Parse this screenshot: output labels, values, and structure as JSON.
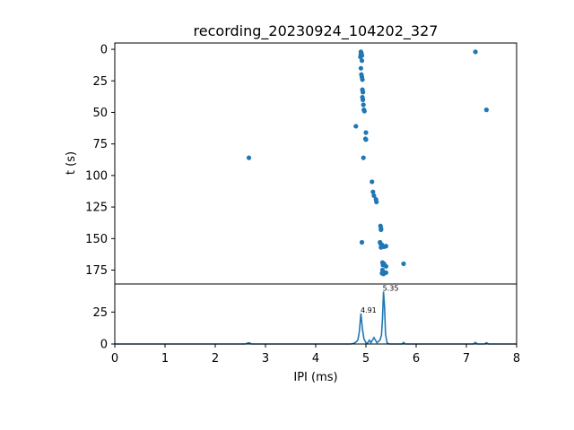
{
  "chart_data": [
    {
      "type": "scatter",
      "title": "recording_20230924_104202_327",
      "xlabel": "",
      "ylabel": "t (s)",
      "xlim": [
        0,
        8
      ],
      "ylim": [
        186,
        -5
      ],
      "y_inverted": true,
      "yticks": [
        "0",
        "25",
        "50",
        "75",
        "100",
        "125",
        "150",
        "175"
      ],
      "grid": false,
      "color": "#1f77b4",
      "points": [
        [
          7.18,
          2
        ],
        [
          7.4,
          48
        ],
        [
          2.67,
          86
        ],
        [
          4.9,
          2
        ],
        [
          4.91,
          3
        ],
        [
          4.9,
          4
        ],
        [
          4.92,
          5
        ],
        [
          4.89,
          6
        ],
        [
          4.91,
          3.5
        ],
        [
          4.92,
          9
        ],
        [
          4.9,
          15
        ],
        [
          4.91,
          20
        ],
        [
          4.92,
          22
        ],
        [
          4.93,
          24
        ],
        [
          4.93,
          32
        ],
        [
          4.94,
          34
        ],
        [
          4.93,
          38
        ],
        [
          4.94,
          40
        ],
        [
          4.95,
          44
        ],
        [
          4.96,
          48
        ],
        [
          4.97,
          49
        ],
        [
          4.8,
          61
        ],
        [
          5.0,
          66
        ],
        [
          4.99,
          71
        ],
        [
          5.0,
          71.5
        ],
        [
          4.95,
          86
        ],
        [
          5.12,
          105
        ],
        [
          5.14,
          113
        ],
        [
          5.16,
          116
        ],
        [
          5.2,
          119
        ],
        [
          5.21,
          121
        ],
        [
          5.29,
          140
        ],
        [
          5.3,
          142
        ],
        [
          5.3,
          143
        ],
        [
          4.92,
          153
        ],
        [
          5.28,
          153
        ],
        [
          5.29,
          154
        ],
        [
          5.32,
          155
        ],
        [
          5.33,
          156
        ],
        [
          5.4,
          156
        ],
        [
          5.3,
          157
        ],
        [
          5.36,
          156.5
        ],
        [
          5.33,
          169
        ],
        [
          5.36,
          170
        ],
        [
          5.34,
          171
        ],
        [
          5.4,
          172
        ],
        [
          5.75,
          170
        ],
        [
          5.33,
          175
        ],
        [
          5.36,
          177
        ],
        [
          5.35,
          178
        ],
        [
          5.4,
          177
        ],
        [
          5.32,
          177.5
        ]
      ]
    },
    {
      "type": "line",
      "xlabel": "IPI (ms)",
      "ylabel": "",
      "xlim": [
        0,
        8
      ],
      "ylim": [
        0,
        47
      ],
      "xticks": [
        "0",
        "1",
        "2",
        "3",
        "4",
        "5",
        "6",
        "7",
        "8"
      ],
      "yticks": [
        "0",
        "25"
      ],
      "color": "#1f77b4",
      "peak_labels": [
        {
          "x": 4.91,
          "y": 24,
          "text": "4.91"
        },
        {
          "x": 5.35,
          "y": 41,
          "text": "5.35"
        }
      ],
      "x": [
        0,
        2.6,
        2.65,
        2.68,
        2.72,
        4.7,
        4.76,
        4.8,
        4.84,
        4.87,
        4.9,
        4.93,
        4.96,
        5.0,
        5.03,
        5.07,
        5.1,
        5.13,
        5.16,
        5.19,
        5.22,
        5.25,
        5.28,
        5.31,
        5.33,
        5.35,
        5.37,
        5.39,
        5.42,
        5.46,
        5.72,
        5.75,
        5.78,
        7.14,
        7.18,
        7.22,
        7.36,
        7.4,
        7.44,
        8
      ],
      "y": [
        0,
        0,
        0.8,
        1,
        0,
        0,
        0.5,
        1.5,
        3,
        10,
        24,
        12,
        4,
        1,
        0.5,
        3,
        1,
        3,
        5,
        3,
        1,
        2,
        3,
        7,
        20,
        41,
        30,
        8,
        1,
        0,
        0,
        1.2,
        0,
        0,
        1.2,
        0,
        0,
        1,
        0,
        0
      ]
    }
  ]
}
